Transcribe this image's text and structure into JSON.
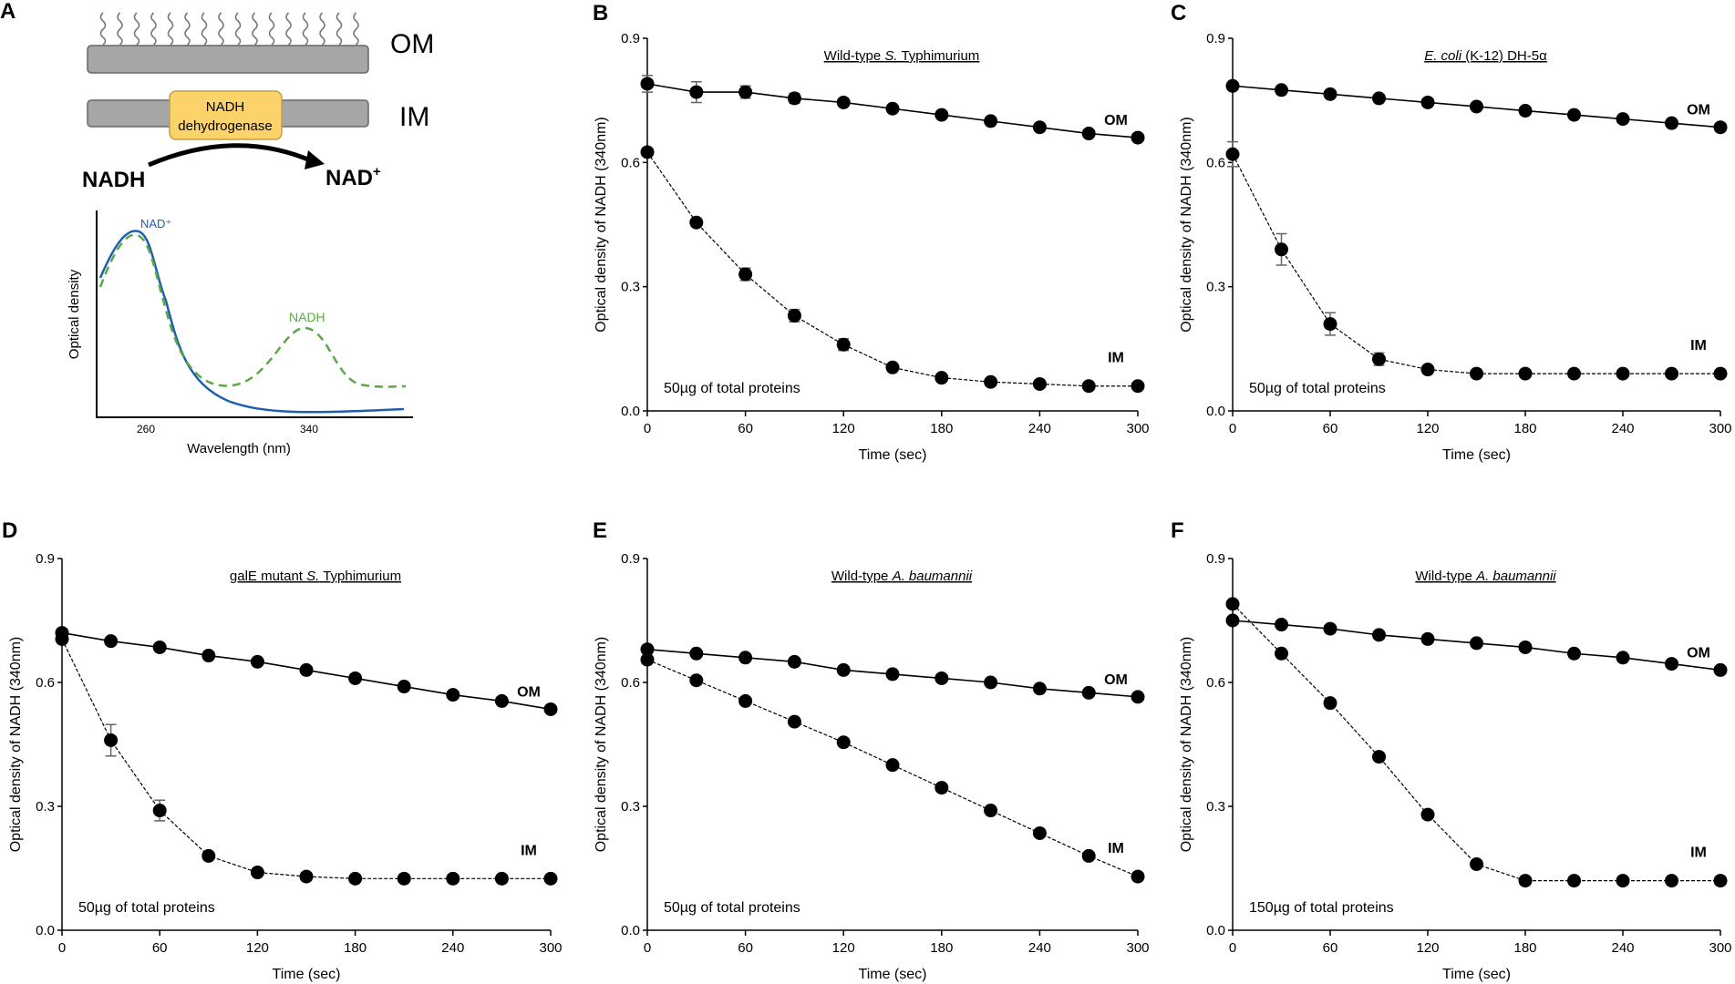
{
  "panel_a": {
    "letter": "A",
    "om_label": "OM",
    "im_label": "IM",
    "enzyme_line1": "NADH",
    "enzyme_line2": "dehydrogenase",
    "substrate": "NADH",
    "product": "NAD",
    "product_sup": "+",
    "spectrum": {
      "ylabel": "Optical density",
      "xlabel": "Wavelength (nm)",
      "xticks": [
        "260",
        "340"
      ],
      "nad_label": "NAD⁺",
      "nadh_label": "NADH",
      "colors": {
        "nad": "#1f5fae",
        "nadh": "#5aa845",
        "membrane": "#a6a6a6",
        "enzyme": "#fcd36b"
      }
    }
  },
  "chart_data": [
    {
      "letter": "B",
      "type": "line",
      "title": "Wild-type S. Typhimurium",
      "title_parts": [
        {
          "t": "Wild-type ",
          "i": false
        },
        {
          "t": "S.",
          "i": true
        },
        {
          "t": " Typhimurium",
          "i": false
        }
      ],
      "annotation": "50µg of total proteins",
      "xlabel": "Time (sec)",
      "ylabel": "Optical density of NADH (340nm)",
      "xlim": [
        0,
        300
      ],
      "ylim": [
        0,
        0.9
      ],
      "xticks": [
        "0",
        "60",
        "120",
        "180",
        "240",
        "300"
      ],
      "yticks": [
        "0.0",
        "0.3",
        "0.6",
        "0.9"
      ],
      "x": [
        0,
        30,
        60,
        90,
        120,
        150,
        180,
        210,
        240,
        270,
        300
      ],
      "series": [
        {
          "name": "OM",
          "style": "solid",
          "values": [
            0.79,
            0.77,
            0.77,
            0.755,
            0.745,
            0.73,
            0.715,
            0.7,
            0.685,
            0.67,
            0.66
          ],
          "errors": [
            0.02,
            0.025,
            0.015,
            0.012,
            0,
            0,
            0,
            0,
            0,
            0,
            0
          ]
        },
        {
          "name": "IM",
          "style": "dashed",
          "values": [
            0.625,
            0.455,
            0.33,
            0.23,
            0.16,
            0.105,
            0.08,
            0.07,
            0.065,
            0.06,
            0.06
          ],
          "errors": [
            0,
            0,
            0.015,
            0.015,
            0.014,
            0,
            0,
            0,
            0,
            0,
            0
          ]
        }
      ]
    },
    {
      "letter": "C",
      "type": "line",
      "title": "E. coli (K-12) DH-5α",
      "title_parts": [
        {
          "t": "E. coli",
          "i": true
        },
        {
          "t": "  (K-12) DH-5α",
          "i": false
        }
      ],
      "annotation": "50µg of total proteins",
      "xlabel": "Time (sec)",
      "ylabel": "Optical density of NADH (340nm)",
      "xlim": [
        0,
        300
      ],
      "ylim": [
        0,
        0.9
      ],
      "xticks": [
        "0",
        "60",
        "120",
        "180",
        "240",
        "300"
      ],
      "yticks": [
        "0.0",
        "0.3",
        "0.6",
        "0.9"
      ],
      "x": [
        0,
        30,
        60,
        90,
        120,
        150,
        180,
        210,
        240,
        270,
        300
      ],
      "series": [
        {
          "name": "OM",
          "style": "solid",
          "values": [
            0.785,
            0.775,
            0.765,
            0.755,
            0.745,
            0.735,
            0.725,
            0.715,
            0.705,
            0.695,
            0.685
          ],
          "errors": [
            0,
            0,
            0,
            0,
            0,
            0,
            0,
            0,
            0,
            0,
            0
          ]
        },
        {
          "name": "IM",
          "style": "dashed",
          "values": [
            0.62,
            0.39,
            0.21,
            0.125,
            0.1,
            0.09,
            0.09,
            0.09,
            0.09,
            0.09,
            0.09
          ],
          "errors": [
            0.03,
            0.038,
            0.027,
            0.015,
            0,
            0,
            0,
            0,
            0,
            0,
            0
          ]
        }
      ]
    },
    {
      "letter": "D",
      "type": "line",
      "title": "galE mutant S. Typhimurium",
      "title_parts": [
        {
          "t": "galE mutant ",
          "i": false
        },
        {
          "t": "S.",
          "i": true
        },
        {
          "t": " Typhimurium",
          "i": false
        }
      ],
      "annotation": "50µg of total proteins",
      "xlabel": "Time (sec)",
      "ylabel": "Optical density of NADH (340nm)",
      "xlim": [
        0,
        300
      ],
      "ylim": [
        0,
        0.9
      ],
      "xticks": [
        "0",
        "60",
        "120",
        "180",
        "240",
        "300"
      ],
      "yticks": [
        "0.0",
        "0.3",
        "0.6",
        "0.9"
      ],
      "x": [
        0,
        30,
        60,
        90,
        120,
        150,
        180,
        210,
        240,
        270,
        300
      ],
      "series": [
        {
          "name": "OM",
          "style": "solid",
          "values": [
            0.72,
            0.7,
            0.685,
            0.665,
            0.65,
            0.63,
            0.61,
            0.59,
            0.57,
            0.555,
            0.535
          ],
          "errors": [
            0,
            0,
            0,
            0,
            0,
            0,
            0,
            0,
            0,
            0,
            0
          ]
        },
        {
          "name": "IM",
          "style": "dashed",
          "values": [
            0.705,
            0.46,
            0.29,
            0.18,
            0.14,
            0.13,
            0.125,
            0.125,
            0.125,
            0.125,
            0.125
          ],
          "errors": [
            0,
            0.038,
            0.025,
            0,
            0,
            0,
            0,
            0,
            0,
            0,
            0
          ]
        }
      ]
    },
    {
      "letter": "E",
      "type": "line",
      "title": "Wild-type A. baumannii",
      "title_parts": [
        {
          "t": "Wild-type ",
          "i": false
        },
        {
          "t": "A. baumannii",
          "i": true
        }
      ],
      "annotation": "50µg of total proteins",
      "xlabel": "Time (sec)",
      "ylabel": "Optical density of NADH (340nm)",
      "xlim": [
        0,
        300
      ],
      "ylim": [
        0,
        0.9
      ],
      "xticks": [
        "0",
        "60",
        "120",
        "180",
        "240",
        "300"
      ],
      "yticks": [
        "0.0",
        "0.3",
        "0.6",
        "0.9"
      ],
      "x": [
        0,
        30,
        60,
        90,
        120,
        150,
        180,
        210,
        240,
        270,
        300
      ],
      "series": [
        {
          "name": "OM",
          "style": "solid",
          "values": [
            0.68,
            0.67,
            0.66,
            0.65,
            0.63,
            0.62,
            0.61,
            0.6,
            0.585,
            0.575,
            0.565
          ],
          "errors": [
            0,
            0,
            0,
            0,
            0,
            0,
            0,
            0,
            0,
            0,
            0
          ]
        },
        {
          "name": "IM",
          "style": "dashed",
          "values": [
            0.655,
            0.605,
            0.555,
            0.505,
            0.455,
            0.4,
            0.345,
            0.29,
            0.235,
            0.18,
            0.13
          ],
          "errors": [
            0,
            0,
            0,
            0,
            0,
            0,
            0,
            0,
            0,
            0,
            0
          ]
        }
      ]
    },
    {
      "letter": "F",
      "type": "line",
      "title": "Wild-type A. baumannii",
      "title_parts": [
        {
          "t": "Wild-type ",
          "i": false
        },
        {
          "t": "A. baumannii",
          "i": true
        }
      ],
      "annotation": "150µg of total proteins",
      "xlabel": "Time (sec)",
      "ylabel": "Optical density of NADH (340nm)",
      "xlim": [
        0,
        300
      ],
      "ylim": [
        0,
        0.9
      ],
      "xticks": [
        "0",
        "60",
        "120",
        "180",
        "240",
        "300"
      ],
      "yticks": [
        "0.0",
        "0.3",
        "0.6",
        "0.9"
      ],
      "x": [
        0,
        30,
        60,
        90,
        120,
        150,
        180,
        210,
        240,
        270,
        300
      ],
      "series": [
        {
          "name": "OM",
          "style": "solid",
          "values": [
            0.75,
            0.74,
            0.73,
            0.715,
            0.705,
            0.695,
            0.685,
            0.67,
            0.66,
            0.645,
            0.63
          ],
          "errors": [
            0,
            0,
            0,
            0,
            0,
            0,
            0,
            0,
            0,
            0,
            0
          ]
        },
        {
          "name": "IM",
          "style": "dashed",
          "values": [
            0.79,
            0.67,
            0.55,
            0.42,
            0.28,
            0.16,
            0.12,
            0.12,
            0.12,
            0.12,
            0.12
          ],
          "errors": [
            0,
            0,
            0,
            0,
            0,
            0,
            0,
            0,
            0,
            0,
            0
          ]
        }
      ]
    }
  ]
}
